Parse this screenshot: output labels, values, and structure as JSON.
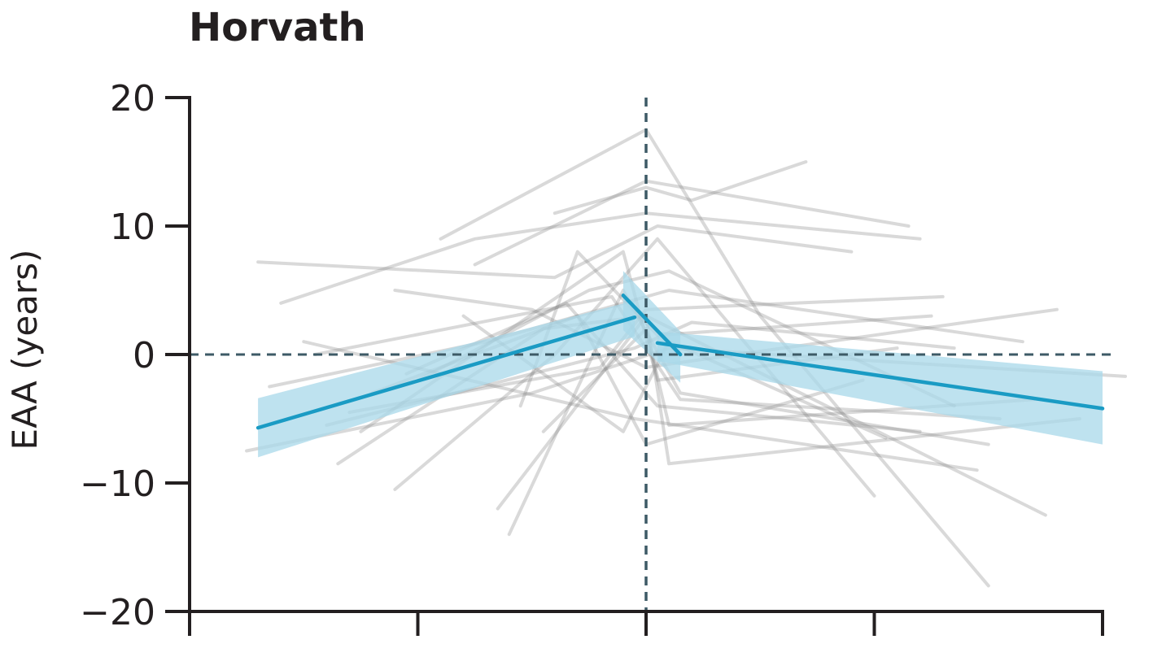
{
  "chart_data": {
    "type": "line",
    "title": "Horvath",
    "ylabel": "EAA (years)",
    "xlabel": "",
    "ylim": [
      -20,
      20
    ],
    "xlim": [
      -4,
      4
    ],
    "yticks": [
      20,
      10,
      0,
      -10,
      -20
    ],
    "ytick_labels": [
      "20",
      "10",
      "0",
      "−10",
      "−20"
    ],
    "xticks": [
      -4,
      -2,
      0,
      2,
      4
    ],
    "xtick_labels": [
      "",
      "",
      "",
      "",
      ""
    ],
    "reference_lines": {
      "x": 0,
      "y": 0,
      "style": "dashed"
    },
    "series": [
      {
        "role": "trend_before",
        "x": [
          -3.4,
          -0.1
        ],
        "y": [
          -5.7,
          2.9
        ],
        "ci_upper": [
          -3.4,
          4.2
        ],
        "ci_lower": [
          -8.0,
          1.4
        ]
      },
      {
        "role": "trend_transition",
        "x": [
          -0.2,
          0.3
        ],
        "y": [
          4.6,
          0.0
        ],
        "ci_upper": [
          6.5,
          1.8
        ],
        "ci_lower": [
          1.9,
          -2.2
        ]
      },
      {
        "role": "trend_after",
        "x": [
          0.1,
          4.0
        ],
        "y": [
          0.9,
          -4.2
        ],
        "ci_upper": [
          1.8,
          -1.3
        ],
        "ci_lower": [
          -0.5,
          -7.0
        ]
      }
    ],
    "individual_trajectories": [
      {
        "x": [
          -0.8,
          0.0,
          0.4,
          1.4
        ],
        "y": [
          11.0,
          13.0,
          12.0,
          15.0
        ]
      },
      {
        "x": [
          -1.8,
          0.0,
          1.0,
          3.0
        ],
        "y": [
          9.0,
          17.5,
          3.0,
          -18.0
        ]
      },
      {
        "x": [
          -1.5,
          0.0,
          2.3
        ],
        "y": [
          7.0,
          13.5,
          10.0
        ]
      },
      {
        "x": [
          -3.2,
          -1.5,
          0.0,
          2.4
        ],
        "y": [
          4.0,
          9.0,
          11.0,
          9.0
        ]
      },
      {
        "x": [
          -3.4,
          -0.8,
          0.1,
          1.8
        ],
        "y": [
          7.2,
          6.0,
          10.0,
          8.0
        ]
      },
      {
        "x": [
          -2.7,
          -0.9,
          0.0,
          3.5
        ],
        "y": [
          -8.5,
          2.0,
          3.0,
          -12.5
        ]
      },
      {
        "x": [
          -2.2,
          -0.8,
          0.1,
          2.0
        ],
        "y": [
          -10.5,
          0.0,
          9.0,
          -11.0
        ]
      },
      {
        "x": [
          -1.2,
          -0.2,
          0.3,
          3.0
        ],
        "y": [
          -14.0,
          5.0,
          -3.0,
          -7.0
        ]
      },
      {
        "x": [
          -1.3,
          0.0,
          0.2,
          3.8
        ],
        "y": [
          -12.0,
          3.0,
          -8.5,
          -5.0
        ]
      },
      {
        "x": [
          -3.0,
          -0.1,
          2.9
        ],
        "y": [
          1.0,
          -5.0,
          -9.0
        ]
      },
      {
        "x": [
          -3.5,
          -1.0,
          0.2,
          4.2
        ],
        "y": [
          -7.5,
          -3.0,
          0.5,
          -1.7
        ]
      },
      {
        "x": [
          -2.5,
          -0.2,
          0.1,
          2.2
        ],
        "y": [
          -6.0,
          8.0,
          -2.0,
          0.5
        ]
      },
      {
        "x": [
          -2.0,
          -0.5,
          0.2,
          2.7
        ],
        "y": [
          -2.0,
          5.0,
          6.5,
          -4.0
        ]
      },
      {
        "x": [
          -2.6,
          -0.4,
          0.0,
          2.6
        ],
        "y": [
          -4.5,
          -1.0,
          3.5,
          4.5
        ]
      },
      {
        "x": [
          -1.1,
          -0.6,
          0.1,
          2.5
        ],
        "y": [
          -4.0,
          8.0,
          1.5,
          3.0
        ]
      },
      {
        "x": [
          -2.2,
          -1.0,
          0.0,
          3.6
        ],
        "y": [
          5.0,
          3.5,
          -1.0,
          3.5
        ]
      },
      {
        "x": [
          -2.9,
          -0.3,
          0.3,
          3.1
        ],
        "y": [
          0.0,
          4.5,
          -3.5,
          -5.0
        ]
      },
      {
        "x": [
          -1.6,
          -0.2,
          0.2,
          2.1
        ],
        "y": [
          3.0,
          -6.0,
          1.0,
          -6.5
        ]
      },
      {
        "x": [
          -2.4,
          -0.6,
          0.0,
          1.9
        ],
        "y": [
          -3.0,
          3.0,
          -7.0,
          -2.0
        ]
      },
      {
        "x": [
          -3.3,
          -1.4,
          0.2,
          3.3
        ],
        "y": [
          -2.5,
          1.0,
          5.0,
          1.0
        ]
      },
      {
        "x": [
          -0.9,
          0.0,
          0.2,
          3.4
        ],
        "y": [
          -6.0,
          2.0,
          -5.5,
          -3.5
        ]
      },
      {
        "x": [
          -2.1,
          -0.7,
          0.1,
          2.4
        ],
        "y": [
          -1.5,
          4.0,
          -4.0,
          -6.0
        ]
      },
      {
        "x": [
          -2.8,
          -0.1,
          0.4,
          2.7
        ],
        "y": [
          -5.5,
          0.5,
          2.5,
          0.5
        ]
      }
    ]
  }
}
